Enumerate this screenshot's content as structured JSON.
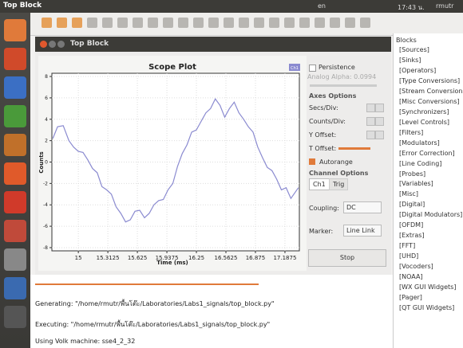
{
  "top_panel": {
    "app_name": "Top Block",
    "keyboard": "en",
    "clock": "17:43 น.",
    "user": "rmutr"
  },
  "window": {
    "title": "Top Block"
  },
  "scope": {
    "chart_data": {
      "type": "line",
      "title": "Scope Plot",
      "legend_label": "Ch1",
      "x_label": "Time (ms)",
      "y_label": "Counts",
      "xlim": [
        14.72,
        17.34
      ],
      "ylim": [
        -8.3,
        8.3
      ],
      "xticks": [
        15,
        15.3125,
        15.625,
        15.9375,
        16.25,
        16.5625,
        16.875,
        17.1875
      ],
      "yticks": [
        -8,
        -6,
        -4,
        -2,
        0,
        2,
        4,
        6,
        8
      ],
      "grid": true,
      "series": [
        {
          "name": "Ch1",
          "color": "#8a8ad0",
          "x": [
            14.73,
            14.78,
            14.84,
            14.9,
            14.95,
            15.0,
            15.05,
            15.1,
            15.15,
            15.2,
            15.25,
            15.3,
            15.35,
            15.4,
            15.45,
            15.5,
            15.55,
            15.6,
            15.65,
            15.7,
            15.75,
            15.8,
            15.85,
            15.9,
            15.95,
            16.0,
            16.05,
            16.1,
            16.15,
            16.2,
            16.25,
            16.3,
            16.35,
            16.4,
            16.45,
            16.5,
            16.55,
            16.6,
            16.65,
            16.7,
            16.75,
            16.8,
            16.85,
            16.9,
            16.95,
            17.0,
            17.05,
            17.1,
            17.15,
            17.2,
            17.25,
            17.33
          ],
          "values": [
            2.2,
            3.3,
            3.4,
            2.0,
            1.4,
            1.0,
            0.9,
            0.2,
            -0.6,
            -1.0,
            -2.3,
            -2.6,
            -3.0,
            -4.2,
            -4.8,
            -5.6,
            -5.4,
            -4.6,
            -4.5,
            -5.2,
            -4.8,
            -4.0,
            -3.6,
            -3.5,
            -2.6,
            -2.0,
            -0.4,
            0.8,
            1.6,
            2.8,
            3.0,
            3.8,
            4.6,
            5.0,
            5.9,
            5.3,
            4.2,
            5.0,
            5.6,
            4.6,
            4.0,
            3.3,
            2.8,
            1.4,
            0.4,
            -0.5,
            -0.8,
            -1.6,
            -2.6,
            -2.4,
            -3.4,
            -2.4
          ]
        }
      ]
    }
  },
  "controls": {
    "persistence": "Persistence",
    "analog_alpha": "Analog Alpha: 0.0994",
    "axes_options": "Axes Options",
    "secs_div": "Secs/Div:",
    "counts_div": "Counts/Div:",
    "y_offset": "Y Offset:",
    "t_offset": "T Offset:",
    "autorange": "Autorange",
    "channel_options": "Channel Options",
    "tab_ch1": "Ch1",
    "tab_trig": "Trig",
    "coupling": "Coupling:",
    "coupling_value": "DC",
    "marker": "Marker:",
    "marker_value": "Line Link",
    "stop": "Stop"
  },
  "blocks": {
    "title": "Blocks",
    "items": [
      "[Sources]",
      "[Sinks]",
      "[Operators]",
      "[Type Conversions]",
      "[Stream Conversions]",
      "[Misc Conversions]",
      "[Synchronizers]",
      "[Level Controls]",
      "[Filters]",
      "[Modulators]",
      "[Error Correction]",
      "[Line Coding]",
      "[Probes]",
      "[Variables]",
      "[Misc]",
      "[Digital]",
      "[Digital Modulators]",
      "[OFDM]",
      "[Extras]",
      "[FFT]",
      "[UHD]",
      "[Vocoders]",
      "[NOAA]",
      "[WX GUI Widgets]",
      "[Pager]",
      "[QT GUI Widgets]"
    ]
  },
  "console": {
    "lines": [
      "Generating: \"/home/rmutr/พื้นโต๊ะ/Laboratories/Labs1_signals/top_block.py\"",
      "Executing: \"/home/rmutr/พื้นโต๊ะ/Laboratories/Labs1_signals/top_block.py\"",
      "Using Volk machine: sse4_2_32"
    ]
  }
}
